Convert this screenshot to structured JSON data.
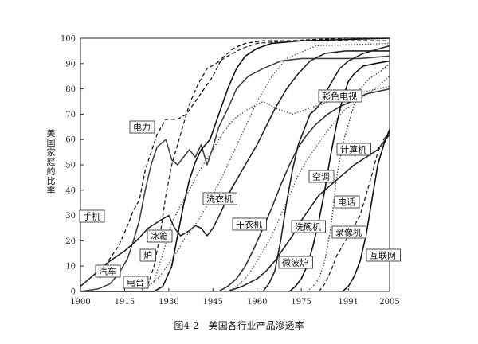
{
  "figure": {
    "number": "图4-2",
    "title": "美国各行业产品渗透率"
  },
  "chart_data": {
    "type": "line",
    "title": "美国各行业产品渗透率",
    "xlabel": "",
    "ylabel": "美国家庭的比率",
    "xlim": [
      1900,
      2005
    ],
    "ylim": [
      0,
      100
    ],
    "xticks": [
      1900,
      1915,
      1930,
      1945,
      1960,
      1975,
      1991,
      2005
    ],
    "yticks": [
      0,
      10,
      20,
      30,
      40,
      50,
      60,
      70,
      80,
      90,
      100
    ],
    "grid": false,
    "series": [
      {
        "name": "手机",
        "style": "solid",
        "color": "#111111",
        "points": [
          [
            1900,
            0
          ],
          [
            1915,
            0
          ],
          [
            1920,
            0
          ],
          [
            1925,
            0
          ]
        ]
      },
      {
        "name": "电力",
        "style": "dashed",
        "color": "#111111",
        "points": [
          [
            1907,
            8
          ],
          [
            1910,
            13
          ],
          [
            1913,
            18
          ],
          [
            1916,
            26
          ],
          [
            1918,
            32
          ],
          [
            1920,
            36
          ],
          [
            1922,
            48
          ],
          [
            1924,
            55
          ],
          [
            1926,
            62
          ],
          [
            1929,
            68
          ],
          [
            1931,
            68
          ],
          [
            1933,
            68
          ],
          [
            1936,
            70
          ],
          [
            1939,
            75
          ],
          [
            1942,
            80
          ],
          [
            1945,
            85
          ],
          [
            1948,
            92
          ],
          [
            1952,
            96
          ],
          [
            1956,
            98
          ],
          [
            1962,
            99
          ],
          [
            1970,
            99
          ],
          [
            1990,
            100
          ],
          [
            2005,
            100
          ]
        ]
      },
      {
        "name": "汽车",
        "style": "solid",
        "color": "#444444",
        "points": [
          [
            1900,
            0
          ],
          [
            1906,
            1
          ],
          [
            1910,
            3
          ],
          [
            1913,
            7
          ],
          [
            1916,
            13
          ],
          [
            1918,
            20
          ],
          [
            1920,
            28
          ],
          [
            1922,
            40
          ],
          [
            1924,
            50
          ],
          [
            1926,
            57
          ],
          [
            1929,
            60
          ],
          [
            1931,
            52
          ],
          [
            1933,
            50
          ],
          [
            1935,
            53
          ],
          [
            1937,
            56
          ],
          [
            1939,
            53
          ],
          [
            1941,
            58
          ],
          [
            1943,
            50
          ],
          [
            1945,
            57
          ],
          [
            1947,
            65
          ],
          [
            1950,
            72
          ],
          [
            1953,
            80
          ],
          [
            1957,
            85
          ],
          [
            1962,
            88
          ],
          [
            1968,
            91
          ],
          [
            1975,
            92
          ],
          [
            1985,
            92
          ],
          [
            1995,
            92
          ],
          [
            2005,
            93
          ]
        ]
      },
      {
        "name": "电台",
        "style": "dashed",
        "color": "#222222",
        "points": [
          [
            1921,
            1
          ],
          [
            1923,
            3
          ],
          [
            1925,
            10
          ],
          [
            1927,
            22
          ],
          [
            1929,
            38
          ],
          [
            1931,
            50
          ],
          [
            1933,
            58
          ],
          [
            1935,
            66
          ],
          [
            1937,
            74
          ],
          [
            1940,
            82
          ],
          [
            1943,
            88
          ],
          [
            1946,
            90
          ],
          [
            1950,
            93
          ],
          [
            1955,
            96
          ],
          [
            1960,
            98
          ],
          [
            1970,
            99
          ],
          [
            2005,
            99
          ]
        ]
      },
      {
        "name": "电话",
        "style": "solid",
        "color": "#222222",
        "points": [
          [
            1900,
            2
          ],
          [
            1905,
            7
          ],
          [
            1910,
            12
          ],
          [
            1915,
            16
          ],
          [
            1919,
            20
          ],
          [
            1923,
            25
          ],
          [
            1927,
            28
          ],
          [
            1930,
            30
          ],
          [
            1932,
            25
          ],
          [
            1934,
            22
          ],
          [
            1937,
            24
          ],
          [
            1939,
            26
          ],
          [
            1941,
            25
          ],
          [
            1943,
            22
          ],
          [
            1945,
            25
          ],
          [
            1948,
            32
          ],
          [
            1951,
            40
          ],
          [
            1955,
            48
          ],
          [
            1960,
            58
          ],
          [
            1963,
            65
          ],
          [
            1966,
            72
          ],
          [
            1970,
            80
          ],
          [
            1974,
            86
          ],
          [
            1978,
            91
          ],
          [
            1983,
            94
          ],
          [
            1990,
            95
          ],
          [
            2005,
            95
          ]
        ]
      },
      {
        "name": "冰箱",
        "style": "solid",
        "color": "#111111",
        "points": [
          [
            1925,
            0
          ],
          [
            1928,
            2
          ],
          [
            1931,
            10
          ],
          [
            1933,
            22
          ],
          [
            1935,
            34
          ],
          [
            1937,
            44
          ],
          [
            1939,
            51
          ],
          [
            1941,
            56
          ],
          [
            1944,
            60
          ],
          [
            1947,
            70
          ],
          [
            1950,
            80
          ],
          [
            1953,
            88
          ],
          [
            1956,
            93
          ],
          [
            1960,
            96
          ],
          [
            1965,
            98
          ],
          [
            1975,
            99
          ],
          [
            2005,
            100
          ]
        ]
      },
      {
        "name": "炉",
        "style": "dotted",
        "color": "#555555",
        "points": [
          [
            1920,
            0
          ],
          [
            1924,
            3
          ],
          [
            1927,
            6
          ],
          [
            1930,
            11
          ],
          [
            1933,
            16
          ],
          [
            1936,
            22
          ],
          [
            1940,
            28
          ],
          [
            1944,
            36
          ],
          [
            1948,
            45
          ],
          [
            1952,
            55
          ],
          [
            1956,
            65
          ],
          [
            1960,
            75
          ],
          [
            1965,
            85
          ],
          [
            1970,
            92
          ],
          [
            1980,
            97
          ],
          [
            2005,
            98
          ]
        ]
      },
      {
        "name": "洗衣机",
        "style": "dotted",
        "color": "#444444",
        "points": [
          [
            1925,
            4
          ],
          [
            1928,
            15
          ],
          [
            1931,
            27
          ],
          [
            1934,
            34
          ],
          [
            1937,
            40
          ],
          [
            1940,
            47
          ],
          [
            1944,
            54
          ],
          [
            1948,
            62
          ],
          [
            1952,
            68
          ],
          [
            1957,
            72
          ],
          [
            1962,
            75
          ],
          [
            1967,
            72
          ],
          [
            1972,
            70
          ],
          [
            1977,
            72
          ],
          [
            1982,
            74
          ],
          [
            1987,
            76
          ],
          [
            1992,
            77
          ],
          [
            1997,
            79
          ],
          [
            2005,
            81
          ]
        ]
      },
      {
        "name": "干衣机",
        "style": "solid",
        "color": "#333333",
        "points": [
          [
            1947,
            0
          ],
          [
            1950,
            2
          ],
          [
            1953,
            5
          ],
          [
            1956,
            10
          ],
          [
            1959,
            17
          ],
          [
            1962,
            25
          ],
          [
            1965,
            33
          ],
          [
            1968,
            42
          ],
          [
            1971,
            50
          ],
          [
            1974,
            57
          ],
          [
            1977,
            62
          ],
          [
            1980,
            66
          ],
          [
            1984,
            70
          ],
          [
            1988,
            73
          ],
          [
            1992,
            75
          ],
          [
            1997,
            78
          ],
          [
            2005,
            80
          ]
        ]
      },
      {
        "name": "空调",
        "style": "dotted",
        "color": "#555555",
        "points": [
          [
            1950,
            0
          ],
          [
            1953,
            2
          ],
          [
            1956,
            5
          ],
          [
            1959,
            10
          ],
          [
            1962,
            16
          ],
          [
            1965,
            22
          ],
          [
            1968,
            30
          ],
          [
            1971,
            38
          ],
          [
            1974,
            46
          ],
          [
            1977,
            52
          ],
          [
            1980,
            57
          ],
          [
            1983,
            62
          ],
          [
            1987,
            68
          ],
          [
            1990,
            72
          ],
          [
            1995,
            76
          ],
          [
            2000,
            80
          ],
          [
            2005,
            85
          ]
        ]
      },
      {
        "name": "洗碗机",
        "style": "solid",
        "color": "#222222",
        "points": [
          [
            1950,
            0
          ],
          [
            1955,
            2
          ],
          [
            1960,
            5
          ],
          [
            1963,
            8
          ],
          [
            1966,
            12
          ],
          [
            1969,
            17
          ],
          [
            1972,
            22
          ],
          [
            1975,
            28
          ],
          [
            1978,
            33
          ],
          [
            1981,
            38
          ],
          [
            1985,
            42
          ],
          [
            1989,
            46
          ],
          [
            1993,
            50
          ],
          [
            1997,
            53
          ],
          [
            2001,
            56
          ],
          [
            2005,
            62
          ]
        ]
      },
      {
        "name": "彩色电视",
        "style": "solid",
        "color": "#222222",
        "points": [
          [
            1962,
            0
          ],
          [
            1964,
            3
          ],
          [
            1966,
            8
          ],
          [
            1968,
            20
          ],
          [
            1970,
            35
          ],
          [
            1972,
            48
          ],
          [
            1974,
            58
          ],
          [
            1976,
            64
          ],
          [
            1978,
            70
          ],
          [
            1980,
            72
          ],
          [
            1982,
            75
          ],
          [
            1984,
            80
          ],
          [
            1986,
            84
          ],
          [
            1988,
            88
          ],
          [
            1991,
            91
          ],
          [
            1996,
            94
          ],
          [
            2005,
            97
          ]
        ]
      },
      {
        "name": "微波炉",
        "style": "solid",
        "color": "#111111",
        "points": [
          [
            1971,
            0
          ],
          [
            1973,
            2
          ],
          [
            1975,
            5
          ],
          [
            1977,
            10
          ],
          [
            1979,
            18
          ],
          [
            1981,
            28
          ],
          [
            1983,
            40
          ],
          [
            1985,
            54
          ],
          [
            1987,
            66
          ],
          [
            1989,
            76
          ],
          [
            1991,
            83
          ],
          [
            1993,
            86
          ],
          [
            1996,
            89
          ],
          [
            2000,
            90
          ],
          [
            2005,
            91
          ]
        ]
      },
      {
        "name": "计算机",
        "style": "dashed",
        "color": "#222222",
        "points": [
          [
            1981,
            0
          ],
          [
            1983,
            3
          ],
          [
            1985,
            8
          ],
          [
            1987,
            14
          ],
          [
            1989,
            18
          ],
          [
            1991,
            22
          ],
          [
            1993,
            26
          ],
          [
            1995,
            30
          ],
          [
            1997,
            38
          ],
          [
            1999,
            46
          ],
          [
            2001,
            55
          ],
          [
            2003,
            60
          ],
          [
            2005,
            63
          ]
        ]
      },
      {
        "name": "录像机",
        "style": "dotted",
        "color": "#333333",
        "points": [
          [
            1977,
            0
          ],
          [
            1979,
            2
          ],
          [
            1981,
            5
          ],
          [
            1983,
            12
          ],
          [
            1985,
            25
          ],
          [
            1987,
            45
          ],
          [
            1989,
            58
          ],
          [
            1991,
            66
          ],
          [
            1993,
            74
          ],
          [
            1995,
            80
          ],
          [
            1998,
            84
          ],
          [
            2002,
            87
          ],
          [
            2005,
            90
          ]
        ]
      },
      {
        "name": "互联网",
        "style": "solid",
        "color": "#111111",
        "points": [
          [
            1989,
            0
          ],
          [
            1991,
            2
          ],
          [
            1993,
            6
          ],
          [
            1995,
            12
          ],
          [
            1997,
            22
          ],
          [
            1999,
            36
          ],
          [
            2001,
            50
          ],
          [
            2003,
            58
          ],
          [
            2005,
            64
          ]
        ]
      }
    ],
    "labels": [
      {
        "text": "手机",
        "series": "手机"
      },
      {
        "text": "电力",
        "series": "电力"
      },
      {
        "text": "汽车",
        "series": "汽车"
      },
      {
        "text": "电台",
        "series": "电台"
      },
      {
        "text": "冰箱",
        "series": "冰箱"
      },
      {
        "text": "炉",
        "series": "炉"
      },
      {
        "text": "洗衣机",
        "series": "洗衣机"
      },
      {
        "text": "干衣机",
        "series": "干衣机"
      },
      {
        "text": "空调",
        "series": "空调"
      },
      {
        "text": "洗碗机",
        "series": "洗碗机"
      },
      {
        "text": "彩色电视",
        "series": "彩色电视"
      },
      {
        "text": "微波炉",
        "series": "微波炉"
      },
      {
        "text": "计算机",
        "series": "计算机"
      },
      {
        "text": "电话",
        "series": "电话"
      },
      {
        "text": "录像机",
        "series": "录像机"
      },
      {
        "text": "互联网",
        "series": "互联网"
      }
    ]
  }
}
